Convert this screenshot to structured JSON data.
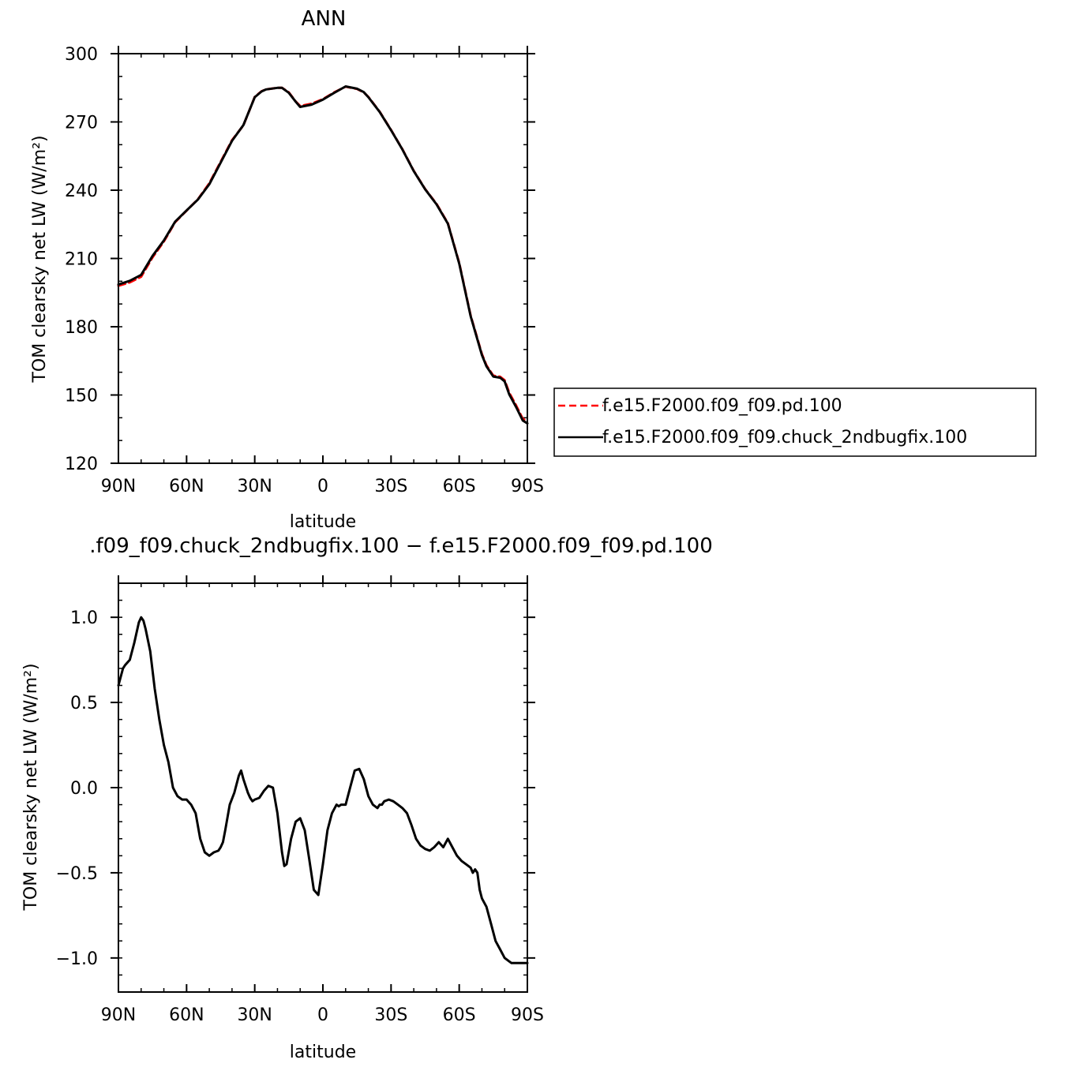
{
  "colors": {
    "pd": "#ff0000",
    "chuck": "#000000"
  },
  "chart_data": [
    {
      "type": "line",
      "title": "ANN",
      "xlabel": "latitude",
      "ylabel": "TOM clearsky net LW (W/m²)",
      "xlim": [
        90,
        -90
      ],
      "ylim": [
        120,
        300
      ],
      "x_ticks": [
        {
          "value": 90,
          "label": "90N"
        },
        {
          "value": 60,
          "label": "60N"
        },
        {
          "value": 30,
          "label": "30N"
        },
        {
          "value": 0,
          "label": "0"
        },
        {
          "value": -30,
          "label": "30S"
        },
        {
          "value": -60,
          "label": "60S"
        },
        {
          "value": -90,
          "label": "90S"
        }
      ],
      "y_ticks": [
        {
          "value": 300,
          "label": "300"
        },
        {
          "value": 270,
          "label": "270"
        },
        {
          "value": 240,
          "label": "240"
        },
        {
          "value": 210,
          "label": "210"
        },
        {
          "value": 180,
          "label": "180"
        },
        {
          "value": 150,
          "label": "150"
        },
        {
          "value": 120,
          "label": "120"
        }
      ],
      "legend": "right",
      "series": [
        {
          "name": "f.e15.F2000.f09_f09.pd.100",
          "color": "#ff0000",
          "dash": true,
          "x": [
            90,
            85,
            80,
            75,
            70,
            65,
            60,
            55,
            50,
            45,
            40,
            35,
            30,
            27,
            25,
            20,
            18,
            15,
            12,
            10,
            5,
            0,
            -5,
            -10,
            -15,
            -18,
            -20,
            -25,
            -30,
            -35,
            -40,
            -45,
            -50,
            -55,
            -60,
            -65,
            -70,
            -72,
            -75,
            -78,
            -80,
            -82,
            -85,
            -88,
            -90
          ],
          "y": [
            198,
            199.5,
            202,
            210.5,
            217.5,
            226,
            231,
            236,
            243,
            252.5,
            262,
            268.5,
            281,
            283.5,
            284.3,
            285,
            285,
            283,
            279,
            277,
            278,
            280,
            283,
            285.5,
            284.5,
            283,
            281,
            274.5,
            266.5,
            258,
            248.5,
            240.5,
            234,
            225.5,
            208,
            185,
            168,
            163,
            158.5,
            158,
            156.5,
            151,
            145.5,
            139.5,
            138.5
          ]
        },
        {
          "name": "f.e15.F2000.f09_f09.chuck_2ndbugfix.100",
          "color": "#000000",
          "dash": false,
          "x": [
            90,
            85,
            80,
            75,
            70,
            65,
            60,
            55,
            50,
            45,
            40,
            35,
            30,
            27,
            25,
            20,
            18,
            15,
            12,
            10,
            5,
            0,
            -5,
            -10,
            -15,
            -18,
            -20,
            -25,
            -30,
            -35,
            -40,
            -45,
            -50,
            -55,
            -60,
            -65,
            -70,
            -72,
            -75,
            -78,
            -80,
            -82,
            -85,
            -88,
            -90
          ],
          "y": [
            198.6,
            200.2,
            202.8,
            211.1,
            217.9,
            226.2,
            231.1,
            235.9,
            242.6,
            252.1,
            261.7,
            268.6,
            280.9,
            283.4,
            284.3,
            285,
            285,
            282.8,
            278.9,
            276.6,
            277.6,
            279.8,
            282.8,
            285.6,
            284.6,
            283.1,
            280.9,
            274.4,
            266.4,
            257.9,
            248.4,
            240.4,
            233.8,
            225.3,
            207.7,
            184.7,
            167.6,
            162.6,
            158.1,
            157.6,
            156,
            150.3,
            144.8,
            138.8,
            137.5
          ]
        }
      ]
    },
    {
      "type": "line",
      "title": ".f09_f09.chuck_2ndbugfix.100 − f.e15.F2000.f09_f09.pd.100",
      "xlabel": "latitude",
      "ylabel": "TOM clearsky net LW (W/m²)",
      "xlim": [
        90,
        -90
      ],
      "ylim": [
        -1.2,
        1.2
      ],
      "x_ticks": [
        {
          "value": 90,
          "label": "90N"
        },
        {
          "value": 60,
          "label": "60N"
        },
        {
          "value": 30,
          "label": "30N"
        },
        {
          "value": 0,
          "label": "0"
        },
        {
          "value": -30,
          "label": "30S"
        },
        {
          "value": -60,
          "label": "60S"
        },
        {
          "value": -90,
          "label": "90S"
        }
      ],
      "y_ticks": [
        {
          "value": 1.0,
          "label": "1.0"
        },
        {
          "value": 0.5,
          "label": "0.5"
        },
        {
          "value": 0.0,
          "label": "0.0"
        },
        {
          "value": -0.5,
          "label": "−0.5"
        },
        {
          "value": -1.0,
          "label": "−1.0"
        }
      ],
      "series": [
        {
          "color": "#000000",
          "dash": false,
          "x": [
            90,
            88,
            87,
            85,
            83,
            81,
            80,
            79,
            78,
            76,
            74,
            72,
            70,
            68,
            66,
            64,
            62,
            60,
            58,
            56,
            54,
            52,
            50,
            48,
            46,
            45,
            44,
            43,
            41,
            39,
            37,
            36,
            35,
            33,
            32,
            31,
            30,
            28,
            26,
            24,
            22,
            20,
            18,
            17,
            16,
            14,
            12,
            10,
            8,
            6,
            4,
            2,
            0,
            -2,
            -4,
            -6,
            -7,
            -8,
            -10,
            -12,
            -14,
            -16,
            -18,
            -20,
            -22,
            -24,
            -25,
            -26,
            -27,
            -29,
            -31,
            -33,
            -35,
            -37,
            -39,
            -41,
            -43,
            -45,
            -47,
            -49,
            -51,
            -53,
            -55,
            -57,
            -59,
            -61,
            -63,
            -65,
            -66,
            -67,
            -68,
            -69,
            -70,
            -72,
            -74,
            -76,
            -78,
            -80,
            -82,
            -83,
            -84,
            -86,
            -87,
            -88,
            -89,
            -90
          ],
          "y": [
            0.6,
            0.7,
            0.72,
            0.75,
            0.85,
            0.97,
            1.0,
            0.98,
            0.93,
            0.8,
            0.58,
            0.4,
            0.25,
            0.15,
            0.0,
            -0.05,
            -0.07,
            -0.07,
            -0.1,
            -0.15,
            -0.3,
            -0.38,
            -0.4,
            -0.38,
            -0.37,
            -0.35,
            -0.32,
            -0.25,
            -0.1,
            -0.03,
            0.07,
            0.1,
            0.05,
            -0.03,
            -0.06,
            -0.08,
            -0.07,
            -0.06,
            -0.02,
            0.01,
            0.0,
            -0.15,
            -0.38,
            -0.46,
            -0.45,
            -0.3,
            -0.2,
            -0.18,
            -0.25,
            -0.42,
            -0.6,
            -0.63,
            -0.45,
            -0.25,
            -0.15,
            -0.1,
            -0.11,
            -0.1,
            -0.1,
            0.0,
            0.1,
            0.11,
            0.05,
            -0.05,
            -0.1,
            -0.12,
            -0.1,
            -0.1,
            -0.08,
            -0.07,
            -0.08,
            -0.1,
            -0.12,
            -0.15,
            -0.22,
            -0.3,
            -0.34,
            -0.36,
            -0.37,
            -0.35,
            -0.32,
            -0.35,
            -0.3,
            -0.35,
            -0.4,
            -0.43,
            -0.45,
            -0.47,
            -0.5,
            -0.48,
            -0.5,
            -0.6,
            -0.65,
            -0.7,
            -0.8,
            -0.9,
            -0.95,
            -1.0,
            -1.02,
            -1.03,
            -1.03,
            -1.03,
            -1.03,
            -1.03,
            -1.03,
            -1.03
          ]
        }
      ]
    }
  ]
}
